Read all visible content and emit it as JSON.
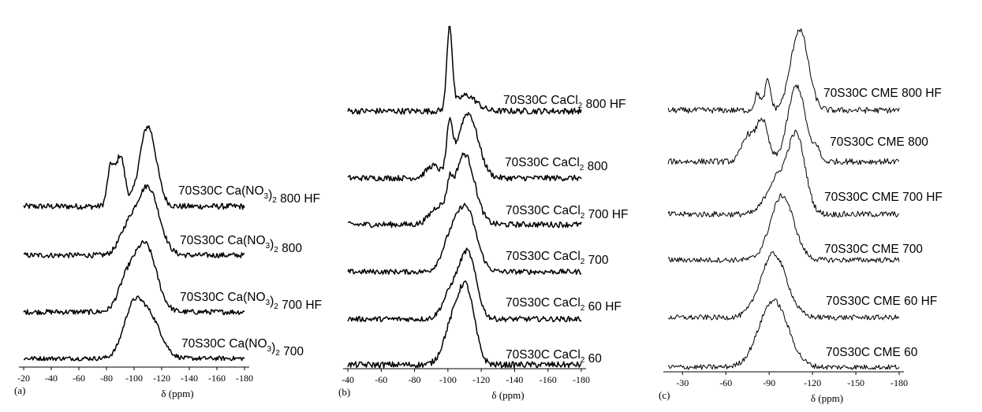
{
  "chart_data": [
    {
      "type": "line",
      "panel_label": "(a)",
      "xlabel": "δ (ppm)",
      "xlim": [
        -20,
        -180
      ],
      "xticks": [
        -20,
        -40,
        -60,
        -80,
        -100,
        -120,
        -140,
        -160,
        -180
      ],
      "series": [
        {
          "name": "70S30C Ca(NO3)2 800 HF",
          "label_parts": [
            [
              "70S30C Ca(NO",
              "n"
            ],
            [
              "3",
              "s"
            ],
            [
              ")",
              "n"
            ],
            [
              "2",
              "s"
            ],
            [
              " 800 HF",
              "n"
            ]
          ],
          "peaks": [
            [
              -110,
              6.0,
              0.95
            ],
            [
              -90,
              3.2,
              0.6
            ],
            [
              -83,
              2.4,
              0.45
            ]
          ]
        },
        {
          "name": "70S30C Ca(NO3)2 800",
          "label_parts": [
            [
              "70S30C Ca(NO",
              "n"
            ],
            [
              "3",
              "s"
            ],
            [
              ")",
              "n"
            ],
            [
              "2",
              "s"
            ],
            [
              " 800",
              "n"
            ]
          ],
          "peaks": [
            [
              -110,
              8.0,
              0.9
            ],
            [
              -95,
              6.0,
              0.3
            ]
          ]
        },
        {
          "name": "70S30C Ca(NO3)2 700 HF",
          "label_parts": [
            [
              "70S30C Ca(NO",
              "n"
            ],
            [
              "3",
              "s"
            ],
            [
              ")",
              "n"
            ],
            [
              "2",
              "s"
            ],
            [
              " 700 HF",
              "n"
            ]
          ],
          "peaks": [
            [
              -108,
              8.0,
              0.9
            ],
            [
              -94,
              6.0,
              0.35
            ]
          ]
        },
        {
          "name": "70S30C Ca(NO3)2 700",
          "label_parts": [
            [
              "70S30C Ca(NO",
              "n"
            ],
            [
              "3",
              "s"
            ],
            [
              ")",
              "n"
            ],
            [
              "2",
              "s"
            ],
            [
              " 700",
              "n"
            ]
          ],
          "peaks": [
            [
              -99,
              7.0,
              0.75
            ],
            [
              -112,
              8.0,
              0.6
            ]
          ]
        }
      ]
    },
    {
      "type": "line",
      "panel_label": "(b)",
      "xlabel": "δ (ppm)",
      "xlim": [
        -40,
        -180
      ],
      "xticks": [
        -40,
        -60,
        -80,
        -100,
        -120,
        -140,
        -160,
        -180
      ],
      "series": [
        {
          "name": "70S30C CaCl2 800 HF",
          "label_parts": [
            [
              "70S30C CaCl",
              "n"
            ],
            [
              "2",
              "s"
            ],
            [
              " 800 HF",
              "n"
            ]
          ],
          "peaks": [
            [
              -101,
              1.6,
              0.95
            ],
            [
              -111,
              6.0,
              0.18
            ]
          ]
        },
        {
          "name": "70S30C CaCl2 800",
          "label_parts": [
            [
              "70S30C CaCl",
              "n"
            ],
            [
              "2",
              "s"
            ],
            [
              " 800",
              "n"
            ]
          ],
          "peaks": [
            [
              -101,
              1.8,
              0.55
            ],
            [
              -112,
              6.0,
              0.8
            ],
            [
              -91,
              4.0,
              0.15
            ]
          ]
        },
        {
          "name": "70S30C CaCl2 700 HF",
          "label_parts": [
            [
              "70S30C CaCl",
              "n"
            ],
            [
              "2",
              "s"
            ],
            [
              " 700 HF",
              "n"
            ]
          ],
          "peaks": [
            [
              -101,
              1.6,
              0.25
            ],
            [
              -110,
              6.0,
              0.85
            ],
            [
              -94,
              5.0,
              0.2
            ]
          ]
        },
        {
          "name": "70S30C CaCl2 700",
          "label_parts": [
            [
              "70S30C CaCl",
              "n"
            ],
            [
              "2",
              "s"
            ],
            [
              " 700",
              "n"
            ]
          ],
          "peaks": [
            [
              -111,
              6.0,
              0.85
            ],
            [
              -101,
              5.0,
              0.35
            ]
          ]
        },
        {
          "name": "70S30C CaCl2 60 HF",
          "label_parts": [
            [
              "70S30C CaCl",
              "n"
            ],
            [
              "2",
              "s"
            ],
            [
              " 60 HF",
              "n"
            ]
          ],
          "peaks": [
            [
              -112,
              5.0,
              0.85
            ],
            [
              -102,
              5.0,
              0.35
            ]
          ]
        },
        {
          "name": "70S30C CaCl2 60",
          "label_parts": [
            [
              "70S30C CaCl",
              "n"
            ],
            [
              "2",
              "s"
            ],
            [
              " 60",
              "n"
            ]
          ],
          "peaks": [
            [
              -111,
              5.0,
              0.85
            ],
            [
              -102,
              5.0,
              0.4
            ]
          ]
        }
      ]
    },
    {
      "type": "line",
      "panel_label": "(c)",
      "xlabel": "δ (ppm)",
      "xlim": [
        -20,
        -180
      ],
      "xticks": [
        -30,
        -60,
        -90,
        -120,
        -150,
        -180
      ],
      "series": [
        {
          "name": "70S30C CME 800 HF",
          "label_parts": [
            [
              "70S30C CME 800 HF",
              "n"
            ]
          ],
          "peaks": [
            [
              -111,
              6.0,
              0.95
            ],
            [
              -89,
              2.0,
              0.35
            ],
            [
              -82,
              2.0,
              0.2
            ]
          ]
        },
        {
          "name": "70S30C CME 800",
          "label_parts": [
            [
              "70S30C CME 800",
              "n"
            ]
          ],
          "peaks": [
            [
              -109,
              6.0,
              0.9
            ],
            [
              -85,
              4.0,
              0.5
            ],
            [
              -75,
              4.0,
              0.3
            ],
            [
              -123,
              2.0,
              0.15
            ]
          ]
        },
        {
          "name": "70S30C CME 700 HF",
          "label_parts": [
            [
              "70S30C CME 700 HF",
              "n"
            ]
          ],
          "peaks": [
            [
              -109,
              6.0,
              0.9
            ],
            [
              -95,
              7.0,
              0.4
            ]
          ]
        },
        {
          "name": "70S30C CME 700",
          "label_parts": [
            [
              "70S30C CME 700",
              "n"
            ]
          ],
          "peaks": [
            [
              -99,
              8.0,
              0.85
            ]
          ]
        },
        {
          "name": "70S30C CME 60 HF",
          "label_parts": [
            [
              "70S30C CME 60 HF",
              "n"
            ]
          ],
          "peaks": [
            [
              -93,
              9.0,
              0.85
            ]
          ]
        },
        {
          "name": "70S30C CME 60",
          "label_parts": [
            [
              "70S30C CME 60",
              "n"
            ]
          ],
          "peaks": [
            [
              -93,
              10.0,
              0.9
            ]
          ]
        }
      ]
    }
  ]
}
